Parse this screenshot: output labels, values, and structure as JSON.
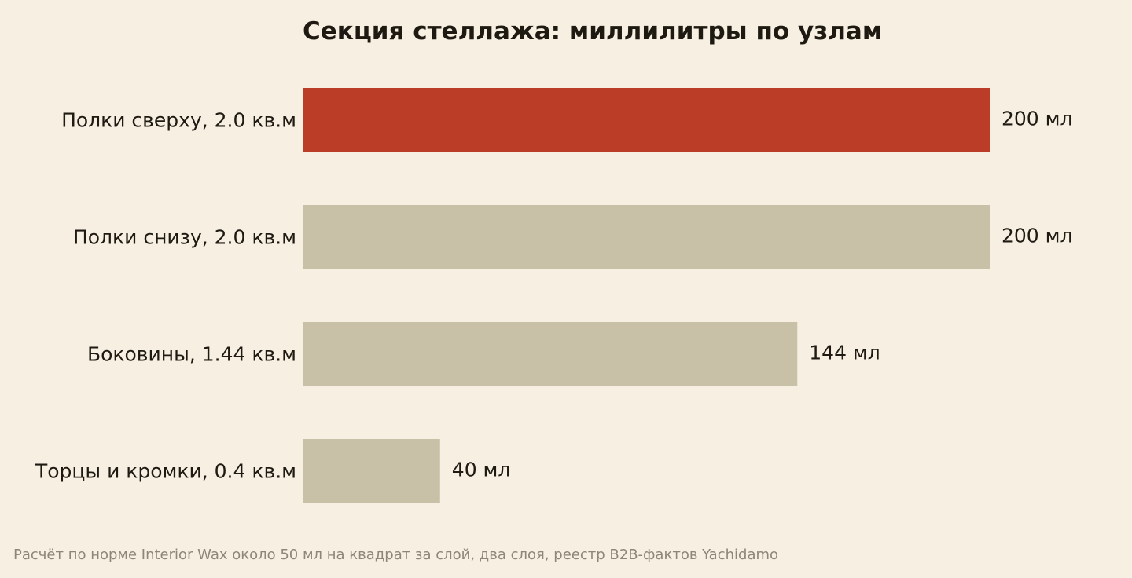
{
  "chart_data": {
    "type": "bar",
    "orientation": "horizontal",
    "title": "Секция стеллажа: миллилитры по узлам",
    "categories": [
      "Полки сверху, 2.0 кв.м",
      "Полки снизу, 2.0 кв.м",
      "Боковины, 1.44 кв.м",
      "Торцы и кромки, 0.4 кв.м"
    ],
    "values": [
      200,
      200,
      144,
      40
    ],
    "value_labels": [
      "200 мл",
      "200 мл",
      "144 мл",
      "40 мл"
    ],
    "unit": "мл",
    "xlim": [
      0,
      200
    ],
    "grid": false,
    "legend": "none",
    "highlight_index": 0,
    "colors": {
      "highlight": "#bb3d27",
      "bar": "#c9c0a8",
      "background": "#f6efe2",
      "text": "#1e1a12",
      "footnote": "#8d8679"
    }
  },
  "footnote": "Расчёт по норме Interior Wax около 50 мл на квадрат за слой, два слоя, реестр B2B-фактов Yachidamo"
}
